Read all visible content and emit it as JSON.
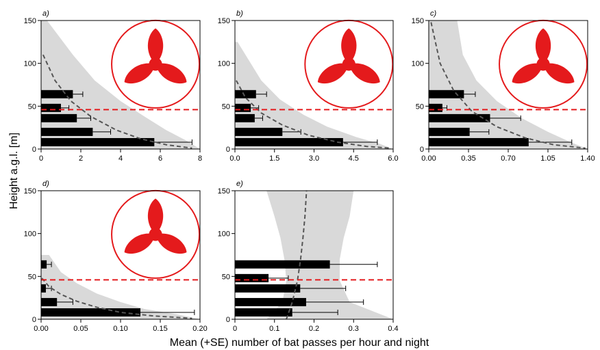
{
  "figure": {
    "ylabel": "Height a.g.l. [m]",
    "xlabel": "Mean (+SE) number of bat passes per hour and night"
  },
  "colors": {
    "bar": "#000000",
    "band": "#d9d9d9",
    "trend": "#555555",
    "threshold": "#e41a1c",
    "turbine": "#e41a1c"
  },
  "chart_data": [
    {
      "type": "bar",
      "orientation": "horizontal",
      "panel": "a)",
      "turbine_icon": true,
      "heights": [
        8,
        20,
        36,
        48,
        64
      ],
      "values": [
        5.7,
        2.6,
        1.8,
        1.0,
        1.6
      ],
      "se_upper": [
        7.6,
        3.5,
        2.5,
        1.4,
        2.1
      ],
      "xlim": [
        0,
        8
      ],
      "xticks": [
        "0",
        "2",
        "4",
        "6",
        "8"
      ],
      "xtick_values": [
        0,
        2,
        4,
        6,
        8
      ],
      "ylim": [
        0,
        150
      ],
      "yticks": [
        "0",
        "50",
        "100",
        "150"
      ],
      "threshold_height": 46,
      "trend": {
        "x": [
          0.1,
          0.7,
          1.5,
          2.5,
          3.8,
          5.0,
          6.3,
          7.6
        ],
        "y": [
          110,
          80,
          56,
          38,
          22,
          12,
          5,
          1
        ]
      },
      "band_left": [
        0,
        0,
        0,
        0,
        0,
        0,
        0,
        0
      ],
      "band_right": [
        0.3,
        1.6,
        2.7,
        4.0,
        5.2,
        6.3,
        7.3,
        8.0
      ],
      "band_y": [
        150,
        110,
        80,
        56,
        38,
        22,
        10,
        0
      ]
    },
    {
      "type": "bar",
      "orientation": "horizontal",
      "panel": "b)",
      "turbine_icon": true,
      "heights": [
        8,
        20,
        36,
        48,
        64
      ],
      "values": [
        4.1,
        1.8,
        0.75,
        0.6,
        0.8
      ],
      "se_upper": [
        5.4,
        2.5,
        1.05,
        0.9,
        1.2
      ],
      "xlim": [
        0,
        6
      ],
      "xticks": [
        "0.0",
        "1.5",
        "3.0",
        "4.5",
        "6.0"
      ],
      "xtick_values": [
        0,
        1.5,
        3.0,
        4.5,
        6.0
      ],
      "ylim": [
        0,
        150
      ],
      "yticks": [
        "0",
        "50",
        "100",
        "150"
      ],
      "threshold_height": 46,
      "trend": {
        "x": [
          0.05,
          0.4,
          1.0,
          1.8,
          2.8,
          3.9,
          5.0,
          5.9
        ],
        "y": [
          80,
          60,
          42,
          28,
          16,
          8,
          3,
          1
        ]
      },
      "band_left": [
        0,
        0,
        0,
        0,
        0,
        0,
        0,
        0
      ],
      "band_right": [
        0.1,
        1.0,
        1.7,
        2.6,
        3.5,
        4.6,
        5.5,
        6.0
      ],
      "band_y": [
        125,
        80,
        58,
        40,
        26,
        14,
        6,
        0
      ]
    },
    {
      "type": "bar",
      "orientation": "horizontal",
      "panel": "c)",
      "turbine_icon": true,
      "heights": [
        8,
        20,
        36,
        48,
        64
      ],
      "values": [
        0.88,
        0.36,
        0.54,
        0.12,
        0.31
      ],
      "se_upper": [
        1.26,
        0.53,
        0.81,
        0.16,
        0.41
      ],
      "xlim": [
        0,
        1.4
      ],
      "xticks": [
        "0.00",
        "0.35",
        "0.70",
        "1.05",
        "1.40"
      ],
      "xtick_values": [
        0,
        0.35,
        0.7,
        1.05,
        1.4
      ],
      "ylim": [
        0,
        150
      ],
      "yticks": [
        "0",
        "50",
        "100",
        "150"
      ],
      "threshold_height": 46,
      "trend": {
        "x": [
          0.02,
          0.1,
          0.22,
          0.38,
          0.6,
          0.85,
          1.1,
          1.38
        ],
        "y": [
          148,
          100,
          68,
          44,
          26,
          13,
          5,
          1
        ]
      },
      "band_left": [
        0,
        0,
        0,
        0,
        0,
        0,
        0,
        0
      ],
      "band_right": [
        0.25,
        0.3,
        0.42,
        0.6,
        0.82,
        1.05,
        1.25,
        1.4
      ],
      "band_y": [
        150,
        110,
        80,
        56,
        36,
        20,
        8,
        0
      ]
    },
    {
      "type": "bar",
      "orientation": "horizontal",
      "panel": "d)",
      "turbine_icon": true,
      "heights": [
        8,
        20,
        36,
        48,
        64
      ],
      "values": [
        0.125,
        0.02,
        0.006,
        0.0,
        0.007
      ],
      "se_upper": [
        0.193,
        0.04,
        0.013,
        0.0,
        0.013
      ],
      "xlim": [
        0,
        0.2
      ],
      "xticks": [
        "0.00",
        "0.05",
        "0.10",
        "0.15",
        "0.20"
      ],
      "xtick_values": [
        0,
        0.05,
        0.1,
        0.15,
        0.2
      ],
      "ylim": [
        0,
        150
      ],
      "yticks": [
        "0",
        "50",
        "100",
        "150"
      ],
      "threshold_height": 46,
      "trend": {
        "x": [
          0.001,
          0.01,
          0.025,
          0.045,
          0.07,
          0.1,
          0.14,
          0.19
        ],
        "y": [
          48,
          38,
          29,
          21,
          14,
          8,
          4,
          1
        ]
      },
      "band_left": [
        0,
        0,
        0,
        0,
        0,
        0,
        0,
        0
      ],
      "band_right": [
        0.01,
        0.025,
        0.045,
        0.07,
        0.1,
        0.13,
        0.17,
        0.2
      ],
      "band_y": [
        75,
        55,
        42,
        30,
        20,
        12,
        6,
        0
      ]
    },
    {
      "type": "bar",
      "orientation": "horizontal",
      "panel": "e)",
      "turbine_icon": false,
      "heights": [
        8,
        20,
        36,
        48,
        64
      ],
      "values": [
        0.145,
        0.18,
        0.165,
        0.085,
        0.24
      ],
      "se_upper": [
        0.26,
        0.325,
        0.28,
        0.135,
        0.36
      ],
      "xlim": [
        0,
        0.4
      ],
      "xticks": [
        "0",
        "0.1",
        "0.2",
        "0.3",
        "0.4"
      ],
      "xtick_values": [
        0,
        0.1,
        0.2,
        0.3,
        0.4
      ],
      "ylim": [
        0,
        150
      ],
      "yticks": [
        "0",
        "50",
        "100",
        "150"
      ],
      "threshold_height": 46,
      "trend": {
        "x": [
          0.13,
          0.145,
          0.158,
          0.166,
          0.172,
          0.177,
          0.181
        ],
        "y": [
          0,
          20,
          45,
          70,
          95,
          120,
          150
        ]
      },
      "band_left": [
        0.08,
        0.12,
        0.13,
        0.125,
        0.115,
        0.1,
        0.08
      ],
      "band_right": [
        0.4,
        0.29,
        0.265,
        0.265,
        0.275,
        0.29,
        0.3
      ],
      "band_y": [
        0,
        20,
        45,
        70,
        95,
        120,
        150
      ]
    }
  ]
}
